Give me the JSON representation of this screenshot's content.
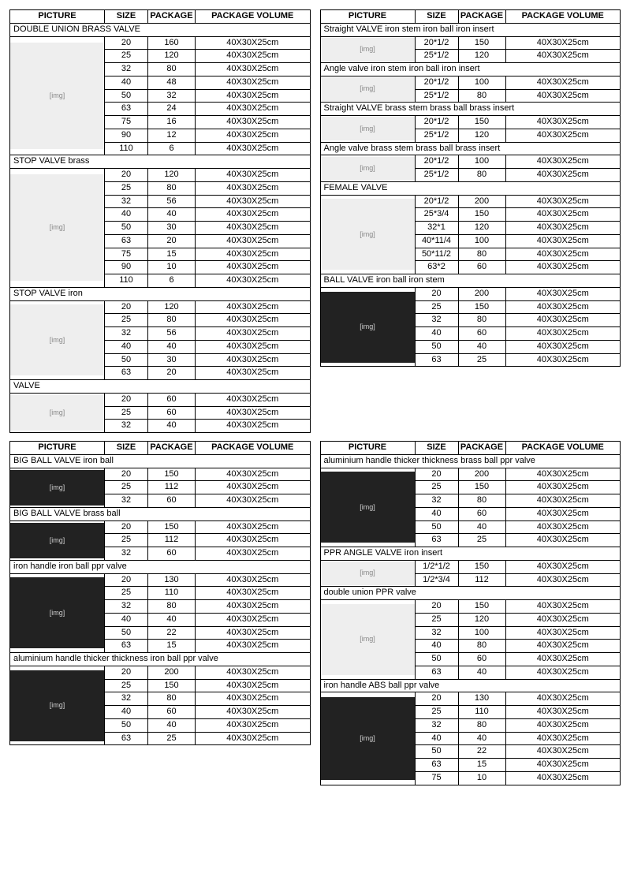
{
  "headers": {
    "picture": "PICTURE",
    "size": "SIZE",
    "package": "PACKAGE",
    "volume": "PACKAGE VOLUME"
  },
  "vol": "40X30X25cm",
  "left1": [
    {
      "title": "DOUBLE UNION BRASS VALVE",
      "img": "brass valve",
      "bg": "light",
      "rows": [
        [
          "20",
          "160"
        ],
        [
          "25",
          "120"
        ],
        [
          "32",
          "80"
        ],
        [
          "40",
          "48"
        ],
        [
          "50",
          "32"
        ],
        [
          "63",
          "24"
        ],
        [
          "75",
          "16"
        ],
        [
          "90",
          "12"
        ],
        [
          "110",
          "6"
        ]
      ]
    },
    {
      "title": "STOP VALVE  brass",
      "img": "stop valve",
      "bg": "light",
      "rows": [
        [
          "20",
          "120"
        ],
        [
          "25",
          "80"
        ],
        [
          "32",
          "56"
        ],
        [
          "40",
          "40"
        ],
        [
          "50",
          "30"
        ],
        [
          "63",
          "20"
        ],
        [
          "75",
          "15"
        ],
        [
          "90",
          "10"
        ],
        [
          "110",
          "6"
        ]
      ]
    },
    {
      "title": "STOP VALVE  iron",
      "img": "stop valve iron",
      "bg": "light",
      "rows": [
        [
          "20",
          "120"
        ],
        [
          "25",
          "80"
        ],
        [
          "32",
          "56"
        ],
        [
          "40",
          "40"
        ],
        [
          "50",
          "30"
        ],
        [
          "63",
          "20"
        ]
      ]
    },
    {
      "title": "VALVE",
      "img": "valve",
      "bg": "light",
      "rows": [
        [
          "20",
          "60"
        ],
        [
          "25",
          "60"
        ],
        [
          "32",
          "40"
        ]
      ]
    }
  ],
  "right1": [
    {
      "title": "Straight VALVE iron stem iron ball iron insert",
      "img": "straight valve",
      "bg": "light",
      "rows": [
        [
          "20*1/2",
          "150"
        ],
        [
          "25*1/2",
          "120"
        ]
      ]
    },
    {
      "title": "Angle valve iron stem iron ball iron insert",
      "img": "angle valve",
      "bg": "light",
      "rows": [
        [
          "20*1/2",
          "100"
        ],
        [
          "25*1/2",
          "80"
        ]
      ]
    },
    {
      "title": "Straight VALVE brass stem brass ball brass insert",
      "img": "straight brass",
      "bg": "light",
      "rows": [
        [
          "20*1/2",
          "150"
        ],
        [
          "25*1/2",
          "120"
        ]
      ]
    },
    {
      "title": "Angle valve brass stem brass ball brass insert",
      "img": "angle brass",
      "bg": "light",
      "rows": [
        [
          "20*1/2",
          "100"
        ],
        [
          "25*1/2",
          "80"
        ]
      ]
    },
    {
      "title": "FEMALE VALVE",
      "img": "female valve",
      "bg": "light",
      "rows": [
        [
          "20*1/2",
          "200"
        ],
        [
          "25*3/4",
          "150"
        ],
        [
          "32*1",
          "120"
        ],
        [
          "40*11/4",
          "100"
        ],
        [
          "50*11/2",
          "80"
        ],
        [
          "63*2",
          "60"
        ]
      ]
    },
    {
      "title": "BALL VALVE iron ball iron stem",
      "img": "ball valve",
      "bg": "dark",
      "rows": [
        [
          "20",
          "200"
        ],
        [
          "25",
          "150"
        ],
        [
          "32",
          "80"
        ],
        [
          "40",
          "60"
        ],
        [
          "50",
          "40"
        ],
        [
          "63",
          "25"
        ]
      ]
    }
  ],
  "left2": [
    {
      "title": "BIG BALL VALVE iron ball",
      "img": "big ball iron",
      "bg": "dark",
      "rows": [
        [
          "20",
          "150"
        ],
        [
          "25",
          "112"
        ],
        [
          "32",
          "60"
        ]
      ]
    },
    {
      "title": "BIG BALL VALVE brass ball",
      "img": "big ball brass",
      "bg": "dark",
      "rows": [
        [
          "20",
          "150"
        ],
        [
          "25",
          "112"
        ],
        [
          "32",
          "60"
        ]
      ]
    },
    {
      "title": "iron handle iron ball ppr valve",
      "img": "ppr valve",
      "bg": "dark",
      "rows": [
        [
          "20",
          "130"
        ],
        [
          "25",
          "110"
        ],
        [
          "32",
          "80"
        ],
        [
          "40",
          "40"
        ],
        [
          "50",
          "22"
        ],
        [
          "63",
          "15"
        ]
      ]
    },
    {
      "title": "aluminium handle thicker thickness iron ball ppr valve",
      "img": "al ppr valve",
      "bg": "dark",
      "rows": [
        [
          "20",
          "200"
        ],
        [
          "25",
          "150"
        ],
        [
          "32",
          "80"
        ],
        [
          "40",
          "60"
        ],
        [
          "50",
          "40"
        ],
        [
          "63",
          "25"
        ]
      ]
    }
  ],
  "right2": [
    {
      "title": "aluminium handle thicker thickness brass ball ppr valve",
      "img": "al brass ppr",
      "bg": "dark",
      "rows": [
        [
          "20",
          "200"
        ],
        [
          "25",
          "150"
        ],
        [
          "32",
          "80"
        ],
        [
          "40",
          "60"
        ],
        [
          "50",
          "40"
        ],
        [
          "63",
          "25"
        ]
      ]
    },
    {
      "title": "PPR ANGLE VALVE iron insert",
      "img": "ppr angle",
      "bg": "light",
      "rows": [
        [
          "1/2*1/2",
          "150"
        ],
        [
          "1/2*3/4",
          "112"
        ]
      ]
    },
    {
      "title": "double union PPR valve",
      "img": "double union ppr",
      "bg": "light",
      "rows": [
        [
          "20",
          "150"
        ],
        [
          "25",
          "120"
        ],
        [
          "32",
          "100"
        ],
        [
          "40",
          "80"
        ],
        [
          "50",
          "60"
        ],
        [
          "63",
          "40"
        ]
      ]
    },
    {
      "title": "iron handle ABS ball ppr valve",
      "img": "abs ppr",
      "bg": "dark",
      "rows": [
        [
          "20",
          "130"
        ],
        [
          "25",
          "110"
        ],
        [
          "32",
          "80"
        ],
        [
          "40",
          "40"
        ],
        [
          "50",
          "22"
        ],
        [
          "63",
          "15"
        ],
        [
          "75",
          "10"
        ]
      ]
    }
  ]
}
